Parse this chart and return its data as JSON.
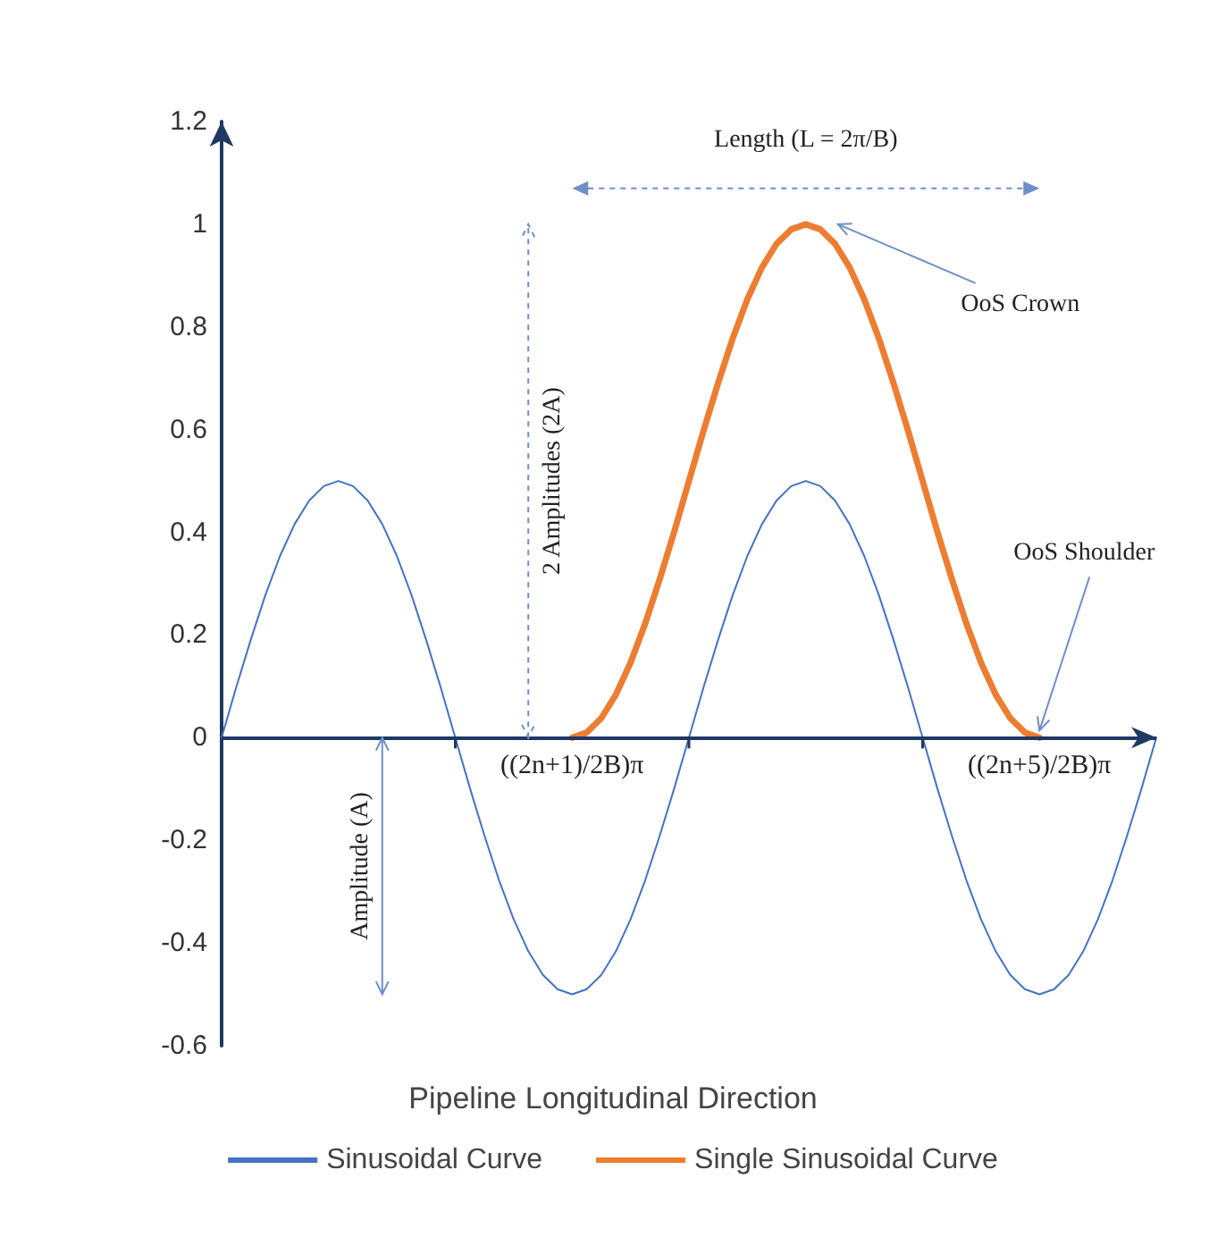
{
  "chart_data": {
    "type": "line",
    "xlabel": "Pipeline Longitudinal Direction",
    "categories": [
      null,
      null,
      null,
      null,
      null,
      null,
      null,
      null,
      null,
      null,
      null,
      null,
      null,
      null,
      null,
      null,
      null,
      null,
      null,
      null,
      null,
      null,
      null,
      null,
      null,
      null,
      null,
      null,
      null,
      null,
      null,
      null,
      null,
      null,
      null,
      null,
      null,
      null,
      null,
      null,
      null,
      null,
      null,
      null,
      null,
      null,
      null,
      null,
      null,
      null,
      null,
      null,
      null,
      null,
      null,
      null,
      null,
      null,
      null,
      null,
      null,
      null,
      null,
      null,
      null
    ],
    "ylim": [
      -0.6,
      1.2
    ],
    "yticks": [
      -0.6,
      -0.4,
      -0.2,
      0,
      0.2,
      0.4,
      0.6,
      0.8,
      1,
      1.2
    ],
    "tick_labels": "y",
    "grid": false,
    "legend": "bottom",
    "line_style": "solid",
    "ref_lines": [
      {
        "axis": "y",
        "value": 0,
        "color": "#1f3864"
      }
    ],
    "series": [
      {
        "name": "Sinusoidal Curve",
        "color": "#4472c4",
        "values": [
          0,
          0.098,
          0.191,
          0.278,
          0.354,
          0.416,
          0.462,
          0.49,
          0.5,
          0.49,
          0.462,
          0.416,
          0.354,
          0.278,
          0.191,
          0.098,
          0,
          -0.098,
          -0.191,
          -0.278,
          -0.354,
          -0.416,
          -0.462,
          -0.49,
          -0.5,
          -0.49,
          -0.462,
          -0.416,
          -0.354,
          -0.278,
          -0.191,
          -0.098,
          0,
          0.098,
          0.191,
          0.278,
          0.354,
          0.416,
          0.462,
          0.49,
          0.5,
          0.49,
          0.462,
          0.416,
          0.354,
          0.278,
          0.191,
          0.098,
          0,
          -0.098,
          -0.191,
          -0.278,
          -0.354,
          -0.416,
          -0.462,
          -0.49,
          -0.5,
          -0.49,
          -0.462,
          -0.416,
          -0.354,
          -0.278,
          -0.191,
          -0.098,
          0
        ]
      },
      {
        "name": "Single Sinusoidal Curve",
        "color": "#ed7d31",
        "values": [
          null,
          null,
          null,
          null,
          null,
          null,
          null,
          null,
          null,
          null,
          null,
          null,
          null,
          null,
          null,
          null,
          null,
          null,
          null,
          null,
          null,
          null,
          null,
          null,
          0,
          0.01,
          0.038,
          0.084,
          0.146,
          0.222,
          0.309,
          0.402,
          0.5,
          0.598,
          0.691,
          0.778,
          0.854,
          0.916,
          0.962,
          0.99,
          1,
          0.99,
          0.962,
          0.916,
          0.854,
          0.778,
          0.691,
          0.598,
          0.5,
          0.402,
          0.309,
          0.222,
          0.146,
          0.084,
          0.038,
          0.01,
          0,
          null,
          null,
          null,
          null,
          null,
          null,
          null,
          null
        ]
      }
    ],
    "annotations": [
      "Length (L = 2π/B)",
      "OoS Crown",
      "OoS Shoulder",
      "2 Amplitudes (2A)",
      "Amplitude (A)",
      "((2n+1)/2B)π",
      "((2n+5)/2B)π"
    ]
  }
}
